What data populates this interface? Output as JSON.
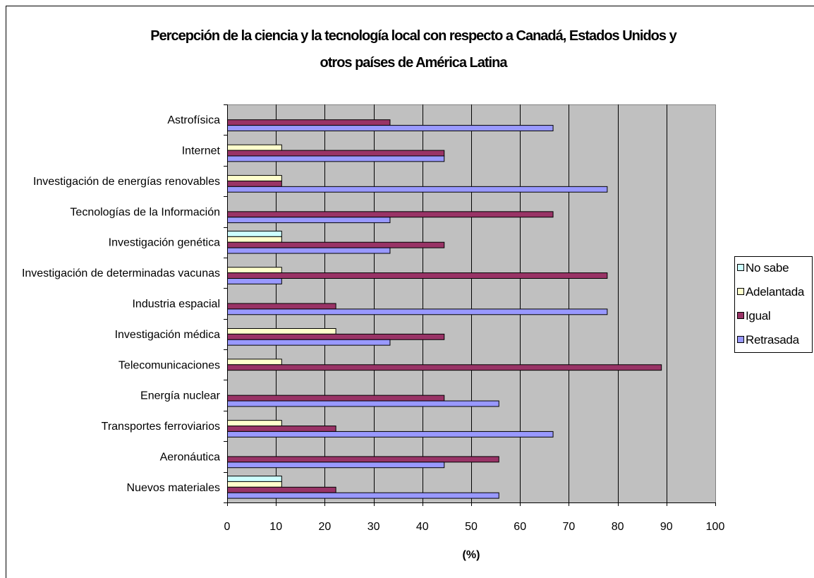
{
  "chart_data": {
    "type": "bar",
    "orientation": "horizontal",
    "title": "Percepción de la ciencia y la tecnología local con respecto a Canadá, Estados Unidos y\notros países de América Latina",
    "xlabel": "(%)",
    "ylabel": "",
    "xlim": [
      0,
      100
    ],
    "xticks": [
      0,
      10,
      20,
      30,
      40,
      50,
      60,
      70,
      80,
      90,
      100
    ],
    "grid": "vertical",
    "legend": "right",
    "plot_background": "#c0c0c0",
    "categories": [
      "Astrofísica",
      "Internet",
      "Investigación de energías renovables",
      "Tecnologías de la Información",
      "Investigación genética",
      "Investigación de determinadas vacunas",
      "Industria espacial",
      "Investigación médica",
      "Telecomunicaciones",
      "Energía nuclear",
      "Transportes ferroviarios",
      "Aeronáutica",
      "Nuevos materiales"
    ],
    "series": [
      {
        "name": "No sabe",
        "color": "#ccffff",
        "values": [
          0,
          0,
          0,
          0,
          11.1,
          0,
          0,
          0,
          0,
          0,
          0,
          0,
          11.1
        ]
      },
      {
        "name": "Adelantada",
        "color": "#ffffcc",
        "values": [
          0,
          11.1,
          11.1,
          0,
          11.1,
          11.1,
          0,
          22.2,
          11.1,
          0,
          11.1,
          0,
          11.1
        ]
      },
      {
        "name": "Igual",
        "color": "#993366",
        "values": [
          33.3,
          44.4,
          11.1,
          66.7,
          44.4,
          77.8,
          22.2,
          44.4,
          88.9,
          44.4,
          22.2,
          55.6,
          22.2
        ]
      },
      {
        "name": "Retrasada",
        "color": "#9999ff",
        "values": [
          66.7,
          44.4,
          77.8,
          33.3,
          33.3,
          11.1,
          77.8,
          33.3,
          0,
          55.6,
          66.7,
          44.4,
          55.6
        ]
      }
    ]
  }
}
